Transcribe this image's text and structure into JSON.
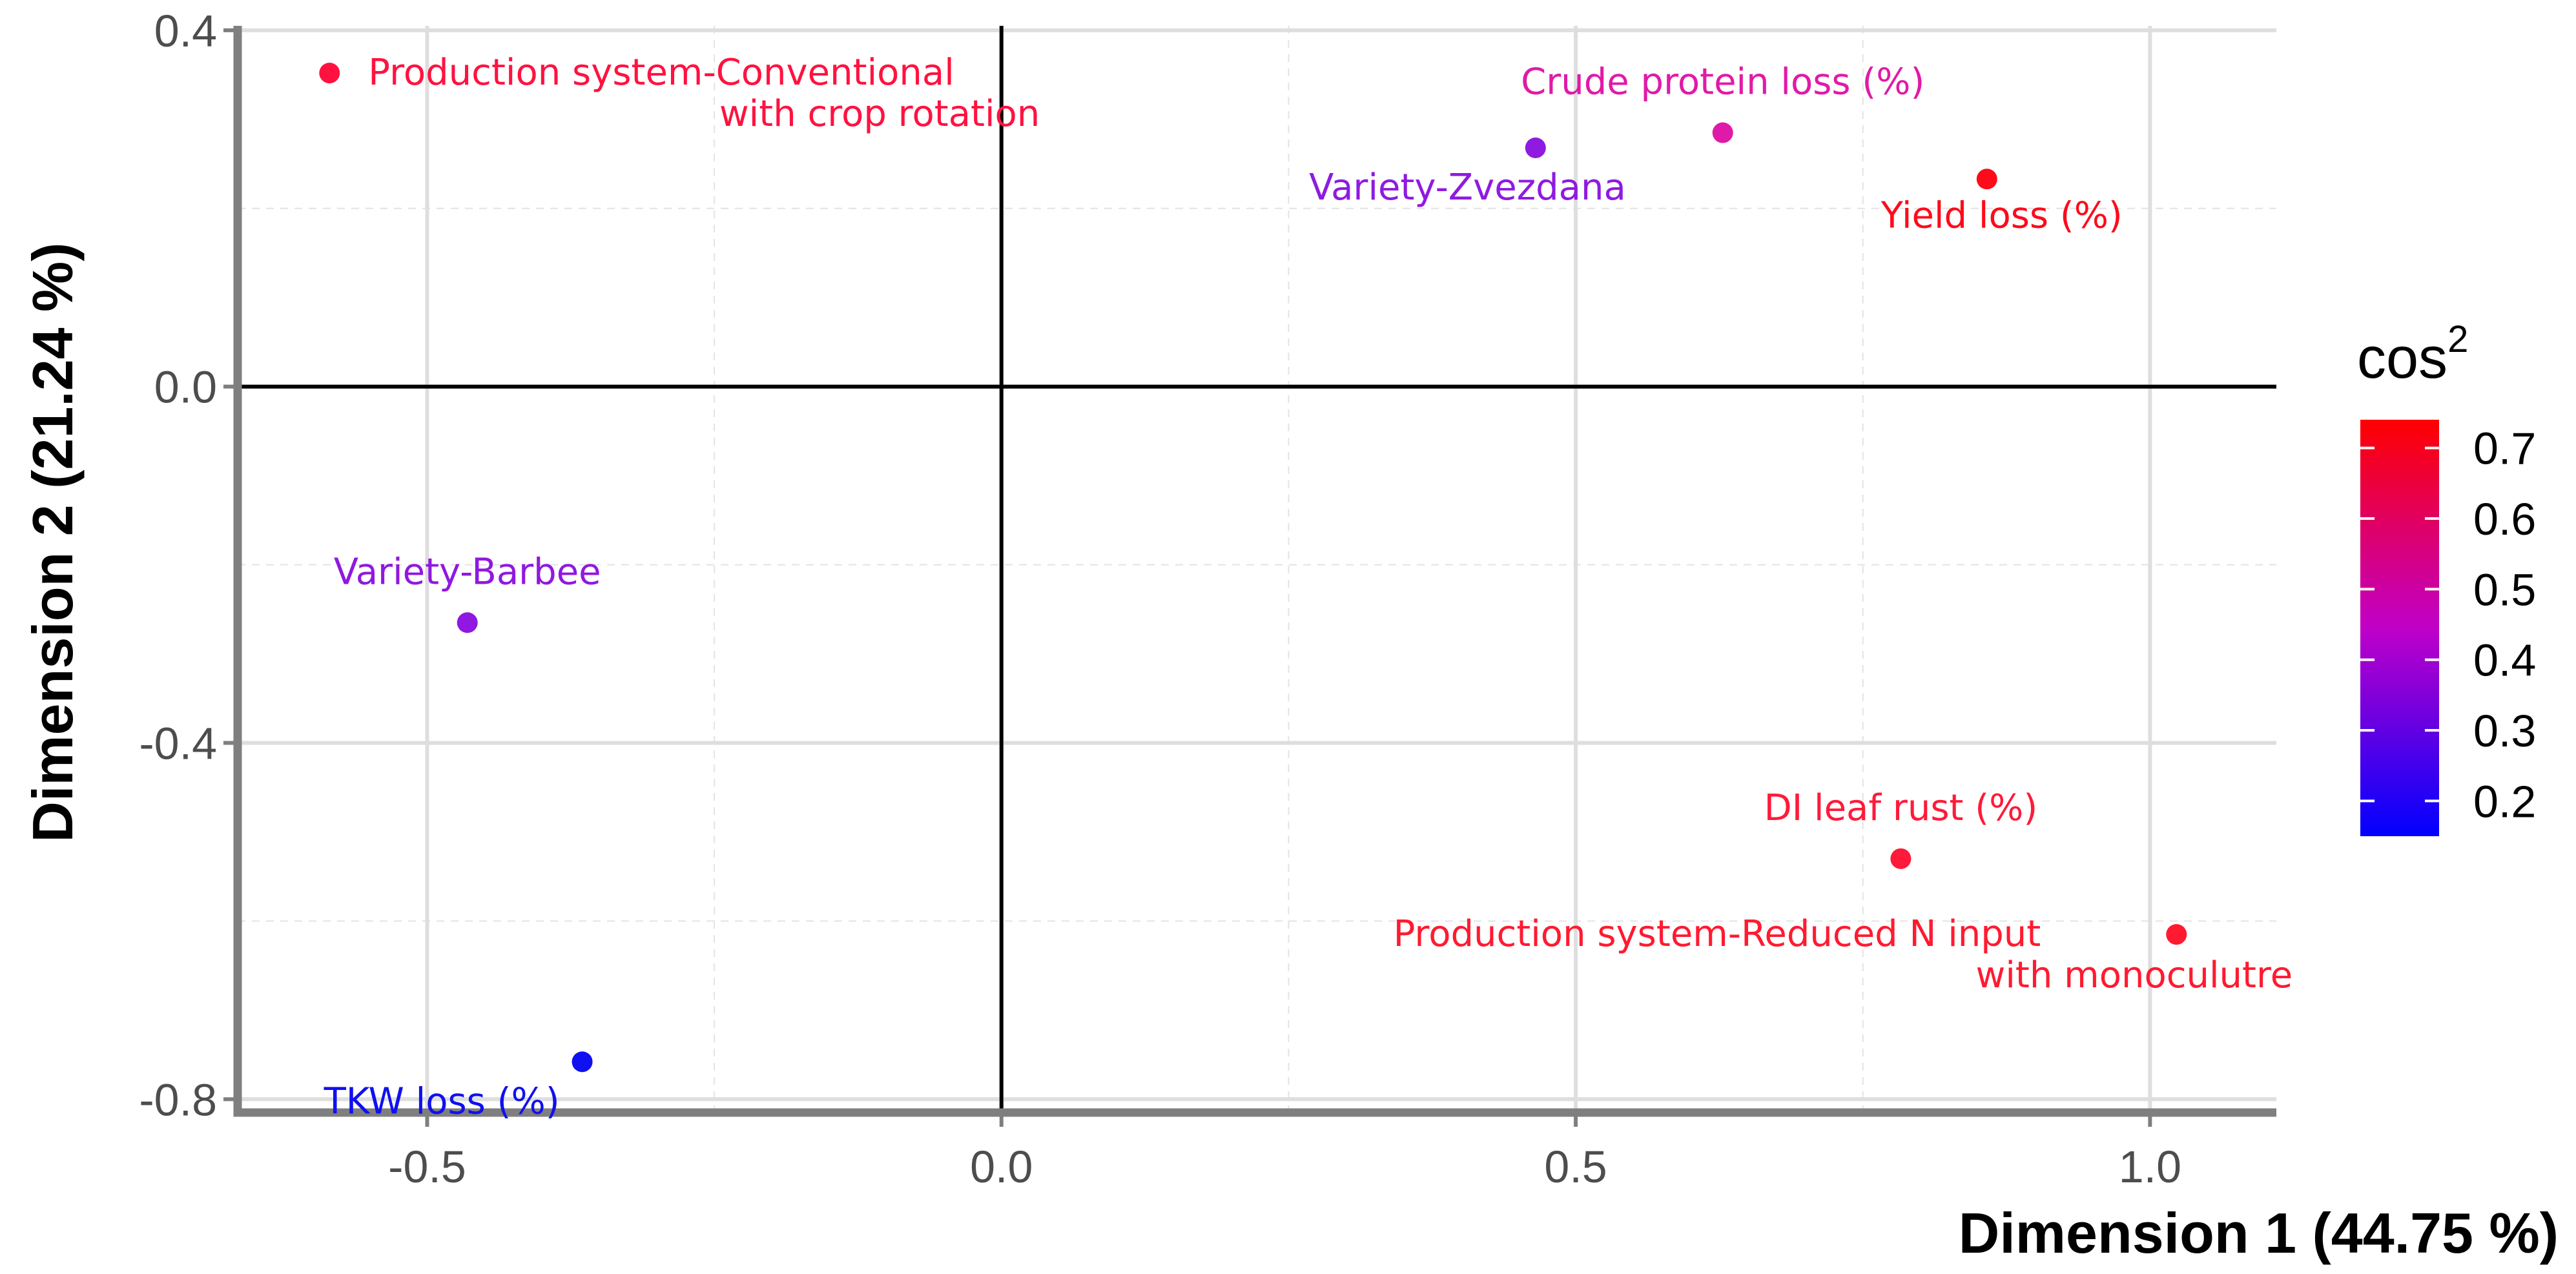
{
  "chart_data": {
    "type": "scatter",
    "xlabel": "Dimension 1 (44.75 %)",
    "ylabel": "Dimension 2 (21.24 %)",
    "xlim": [
      -0.665,
      1.11
    ],
    "ylim": [
      -0.815,
      0.405
    ],
    "x_ticks": [
      -0.5,
      0.0,
      0.5,
      1.0
    ],
    "x_tick_labels": [
      "-0.5",
      "0.0",
      "0.5",
      "1.0"
    ],
    "y_ticks": [
      0.4,
      0.0,
      -0.4,
      -0.8
    ],
    "y_tick_labels": [
      "0.4",
      "0.0",
      "-0.4",
      "-0.8"
    ],
    "grid": true,
    "legend": {
      "title": "cos",
      "title_superscript": "2",
      "placement": "right",
      "color_low": "#0000ff",
      "color_mid": "#c000c8",
      "color_high": "#ff0000",
      "range": [
        0.15,
        0.74
      ],
      "ticks": [
        0.7,
        0.6,
        0.5,
        0.4,
        0.3,
        0.2
      ],
      "tick_labels": [
        "0.7",
        "0.6",
        "0.5",
        "0.4",
        "0.3",
        "0.2"
      ]
    },
    "points": [
      {
        "label": "Production system-Conventional",
        "label2": "with crop rotation",
        "x": -0.585,
        "y": 0.352,
        "cos2": 0.64,
        "color": "#ff1240",
        "anchor": "right"
      },
      {
        "label": "Variety-Zvezdana",
        "x": 0.465,
        "y": 0.268,
        "cos2": 0.24,
        "color": "#8f1ae0",
        "anchor": "below-left"
      },
      {
        "label": "Crude protein loss (%)",
        "x": 0.628,
        "y": 0.285,
        "cos2": 0.4,
        "color": "#e01aa8",
        "anchor": "above"
      },
      {
        "label": "Yield loss (%)",
        "x": 0.858,
        "y": 0.233,
        "cos2": 0.72,
        "color": "#ff0a1a",
        "anchor": "below"
      },
      {
        "label": "Variety-Barbee",
        "x": -0.465,
        "y": -0.265,
        "cos2": 0.23,
        "color": "#9018e0",
        "anchor": "above"
      },
      {
        "label": "DI leaf rust (%)",
        "x": 0.783,
        "y": -0.53,
        "cos2": 0.66,
        "color": "#ff1a3a",
        "anchor": "above"
      },
      {
        "label": "Production system-Reduced N  input",
        "label2": "with monoculutre",
        "x": 1.023,
        "y": -0.615,
        "cos2": 0.68,
        "color": "#ff1a30",
        "anchor": "left"
      },
      {
        "label": "TKW loss (%)",
        "x": -0.365,
        "y": -0.758,
        "cos2": 0.15,
        "color": "#1010f0",
        "anchor": "below-left"
      }
    ]
  }
}
